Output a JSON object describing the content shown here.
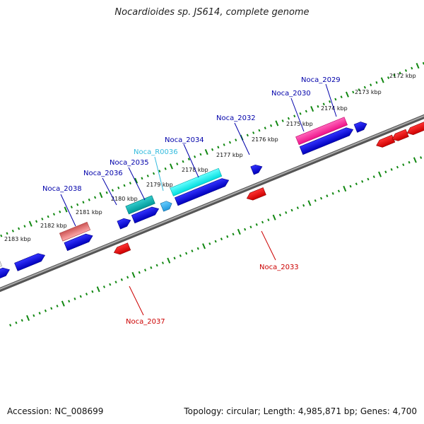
{
  "title": "Nocardioides sp. JS614, complete genome",
  "footer": {
    "accession": "Accession: NC_008699",
    "topology": "Topology: circular; Length: 4,985,871 bp; Genes: 4,700"
  },
  "colors": {
    "forward_gene": "#0000dd",
    "reverse_gene": "#dd0000",
    "rna": "#33bbdd",
    "tick": "#118811",
    "backbone": "#777777"
  },
  "scale_labels": [
    {
      "text": "2172 kbp"
    },
    {
      "text": "2173 kbp"
    },
    {
      "text": "2174 kbp"
    },
    {
      "text": "2175 kbp"
    },
    {
      "text": "2176 kbp"
    },
    {
      "text": "2177 kbp"
    },
    {
      "text": "2178 kbp"
    },
    {
      "text": "2179 kbp"
    },
    {
      "text": "2180 kbp"
    },
    {
      "text": "2181 kbp"
    },
    {
      "text": "2182 kbp"
    },
    {
      "text": "2183 kbp"
    }
  ],
  "gene_labels": [
    {
      "text": "Noca_2029",
      "strand": "forward"
    },
    {
      "text": "Noca_2030",
      "strand": "forward"
    },
    {
      "text": "Noca_2032",
      "strand": "forward"
    },
    {
      "text": "Noca_2034",
      "strand": "forward"
    },
    {
      "text": "Noca_R0036",
      "strand": "rna"
    },
    {
      "text": "Noca_2035",
      "strand": "forward"
    },
    {
      "text": "Noca_2036",
      "strand": "forward"
    },
    {
      "text": "Noca_2038",
      "strand": "forward"
    },
    {
      "text": "Noca_2033",
      "strand": "reverse"
    },
    {
      "text": "Noca_2037",
      "strand": "reverse"
    }
  ]
}
